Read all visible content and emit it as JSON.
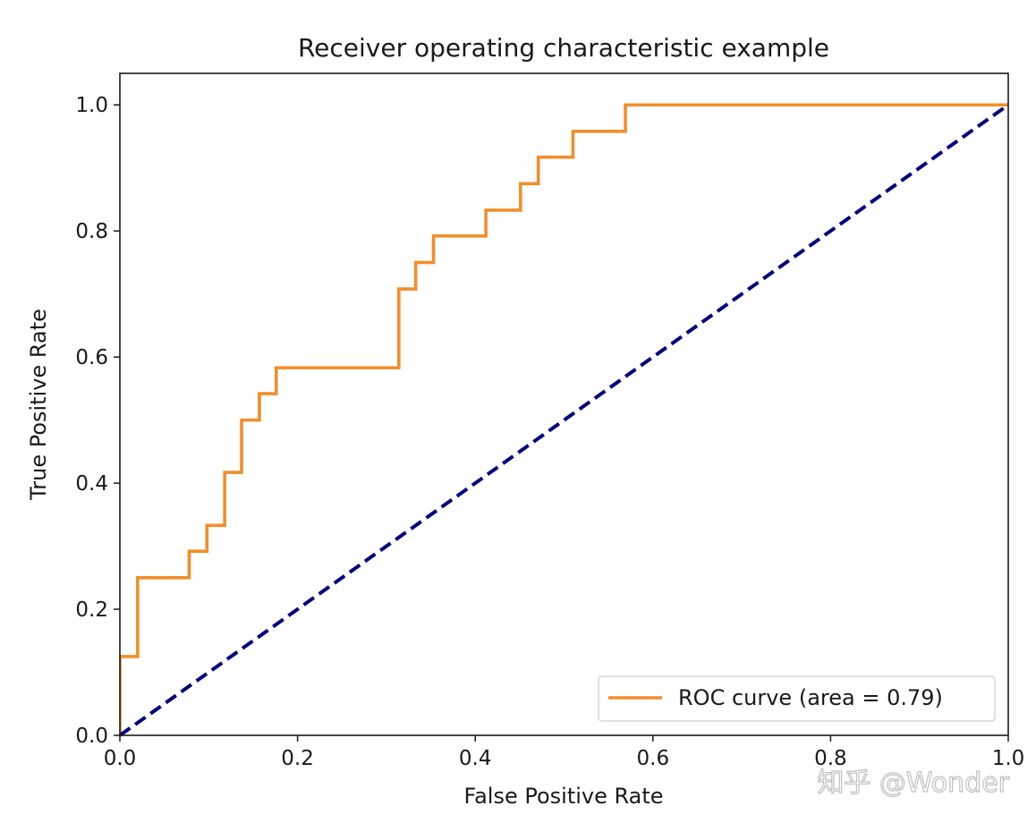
{
  "chart_data": {
    "type": "line",
    "title": "Receiver operating characteristic example",
    "xlabel": "False Positive Rate",
    "ylabel": "True Positive Rate",
    "xlim": [
      0.0,
      1.0
    ],
    "ylim": [
      0.0,
      1.05
    ],
    "xticks": [
      "0.0",
      "0.2",
      "0.4",
      "0.6",
      "0.8",
      "1.0"
    ],
    "yticks": [
      "0.0",
      "0.2",
      "0.4",
      "0.6",
      "0.8",
      "1.0"
    ],
    "grid": false,
    "legend_position": "lower-right",
    "series": [
      {
        "name": "ROC curve (area = 0.79)",
        "color": "#f28e2b",
        "style": "step",
        "x": [
          0.0,
          0.0,
          0.02,
          0.02,
          0.078,
          0.078,
          0.098,
          0.098,
          0.118,
          0.118,
          0.137,
          0.137,
          0.157,
          0.157,
          0.176,
          0.176,
          0.314,
          0.314,
          0.333,
          0.333,
          0.353,
          0.353,
          0.412,
          0.412,
          0.451,
          0.451,
          0.471,
          0.471,
          0.51,
          0.51,
          0.569,
          0.569,
          1.0
        ],
        "y": [
          0.0,
          0.125,
          0.125,
          0.25,
          0.25,
          0.292,
          0.292,
          0.333,
          0.333,
          0.417,
          0.417,
          0.5,
          0.5,
          0.542,
          0.542,
          0.583,
          0.583,
          0.708,
          0.708,
          0.75,
          0.75,
          0.792,
          0.792,
          0.833,
          0.833,
          0.875,
          0.875,
          0.917,
          0.917,
          0.958,
          0.958,
          1.0,
          1.0
        ]
      },
      {
        "color": "#000080",
        "style": "dashed",
        "x": [
          0.0,
          1.0
        ],
        "y": [
          0.0,
          1.0
        ]
      }
    ]
  },
  "watermark": "知乎 @Wonder"
}
